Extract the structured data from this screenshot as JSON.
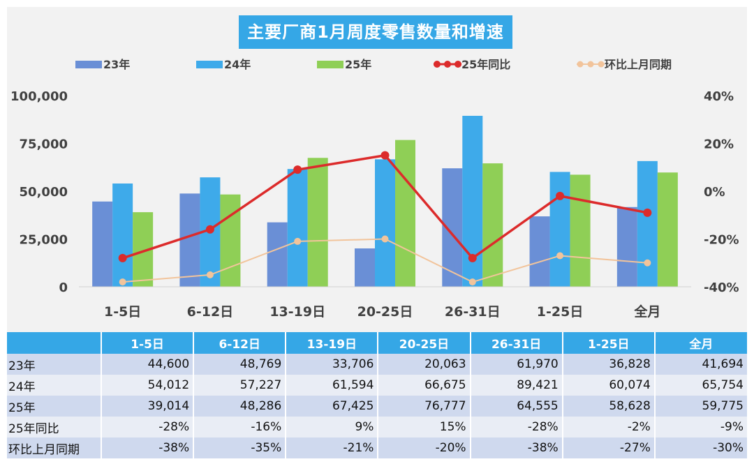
{
  "title": "主要厂商1月周度零售数量和增速",
  "colors": {
    "s23": "#6a8fd6",
    "s24": "#3eaaea",
    "s25": "#8fcf56",
    "yoy": "#dc2b2b",
    "mom": "#f2c49b",
    "header_bg": "#35a7e6"
  },
  "chart_data": {
    "type": "bar",
    "categories": [
      "1-5日",
      "6-12日",
      "13-19日",
      "20-25日",
      "26-31日",
      "1-25日",
      "全月"
    ],
    "series": [
      {
        "name": "23年",
        "type": "bar",
        "axis": "left",
        "values": [
          44600,
          48769,
          33706,
          20063,
          61970,
          36828,
          41694
        ]
      },
      {
        "name": "24年",
        "type": "bar",
        "axis": "left",
        "values": [
          54012,
          57227,
          61594,
          66675,
          89421,
          60074,
          65754
        ]
      },
      {
        "name": "25年",
        "type": "bar",
        "axis": "left",
        "values": [
          39014,
          48286,
          67425,
          76777,
          64555,
          58628,
          59775
        ]
      },
      {
        "name": "25年同比",
        "type": "line",
        "axis": "right",
        "values": [
          -28,
          -16,
          9,
          15,
          -28,
          -2,
          -9
        ]
      },
      {
        "name": "环比上月同期",
        "type": "line",
        "axis": "right",
        "values": [
          -38,
          -35,
          -21,
          -20,
          -38,
          -27,
          -30
        ]
      }
    ],
    "ylim": [
      0,
      100000
    ],
    "y_ticks": [
      "0",
      "25,000",
      "50,000",
      "75,000",
      "100,000"
    ],
    "y2lim": [
      -40,
      40
    ],
    "y2_ticks": [
      "-40%",
      "-20%",
      "0%",
      "20%",
      "40%"
    ],
    "legend_position": "top",
    "grid": false
  },
  "table": {
    "headers": [
      "",
      "1-5日",
      "6-12日",
      "13-19日",
      "20-25日",
      "26-31日",
      "1-25日",
      "全月"
    ],
    "rows": [
      {
        "label": "23年",
        "cells": [
          "44,600",
          "48,769",
          "33,706",
          "20,063",
          "61,970",
          "36,828",
          "41,694"
        ]
      },
      {
        "label": "24年",
        "cells": [
          "54,012",
          "57,227",
          "61,594",
          "66,675",
          "89,421",
          "60,074",
          "65,754"
        ]
      },
      {
        "label": "25年",
        "cells": [
          "39,014",
          "48,286",
          "67,425",
          "76,777",
          "64,555",
          "58,628",
          "59,775"
        ]
      },
      {
        "label": "25年同比",
        "cells": [
          "-28%",
          "-16%",
          "9%",
          "15%",
          "-28%",
          "-2%",
          "-9%"
        ]
      },
      {
        "label": "环比上月同期",
        "cells": [
          "-38%",
          "-35%",
          "-21%",
          "-20%",
          "-38%",
          "-27%",
          "-30%"
        ]
      }
    ]
  }
}
